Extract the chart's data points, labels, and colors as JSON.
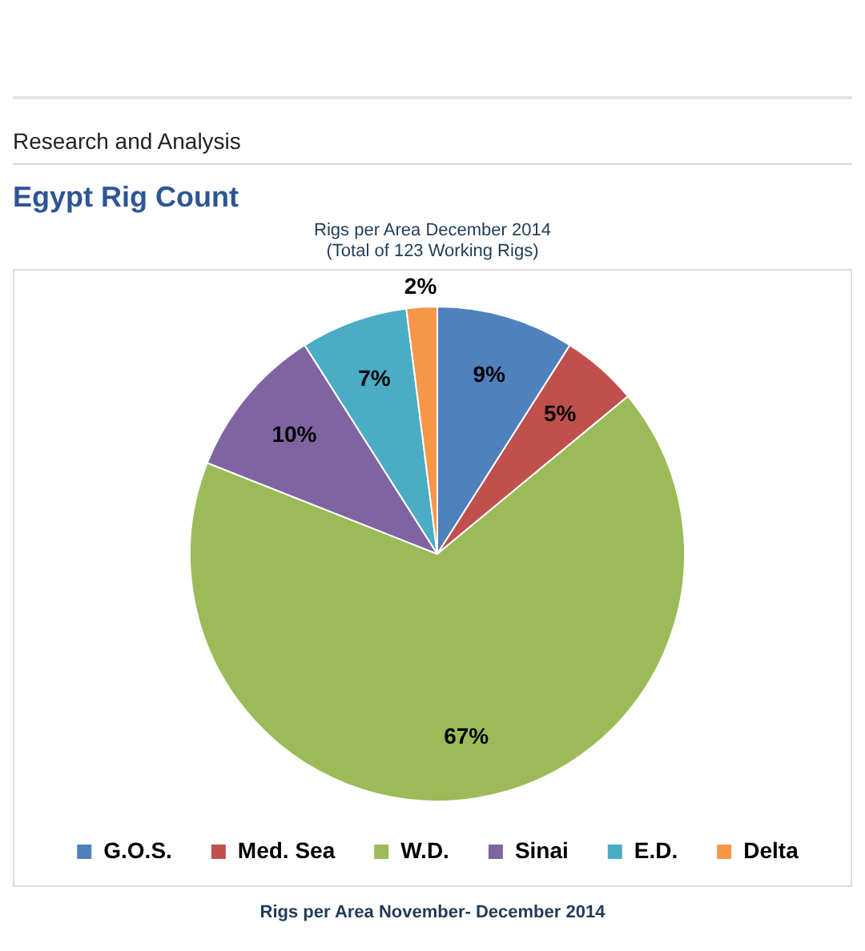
{
  "chart_data": {
    "type": "pie",
    "title": "Egypt Rig Count",
    "subtitle": "Rigs per Area December 2014",
    "annotations": [
      "Research and Analysis",
      "(Total of 123 Working Rigs)",
      "Rigs per Area November- December 2014"
    ],
    "categories": [
      "G.O.S.",
      "Med. Sea",
      "W.D.",
      "Sinai",
      "E.D.",
      "Delta"
    ],
    "values": [
      9,
      5,
      67,
      10,
      7,
      2
    ],
    "colors": [
      "#4f81bd",
      "#c0504d",
      "#9bbb59",
      "#8064a2",
      "#4bacc6",
      "#f79646"
    ],
    "value_labels": [
      "9%",
      "5%",
      "67%",
      "10%",
      "7%",
      "2%"
    ],
    "legend": "bottom"
  }
}
